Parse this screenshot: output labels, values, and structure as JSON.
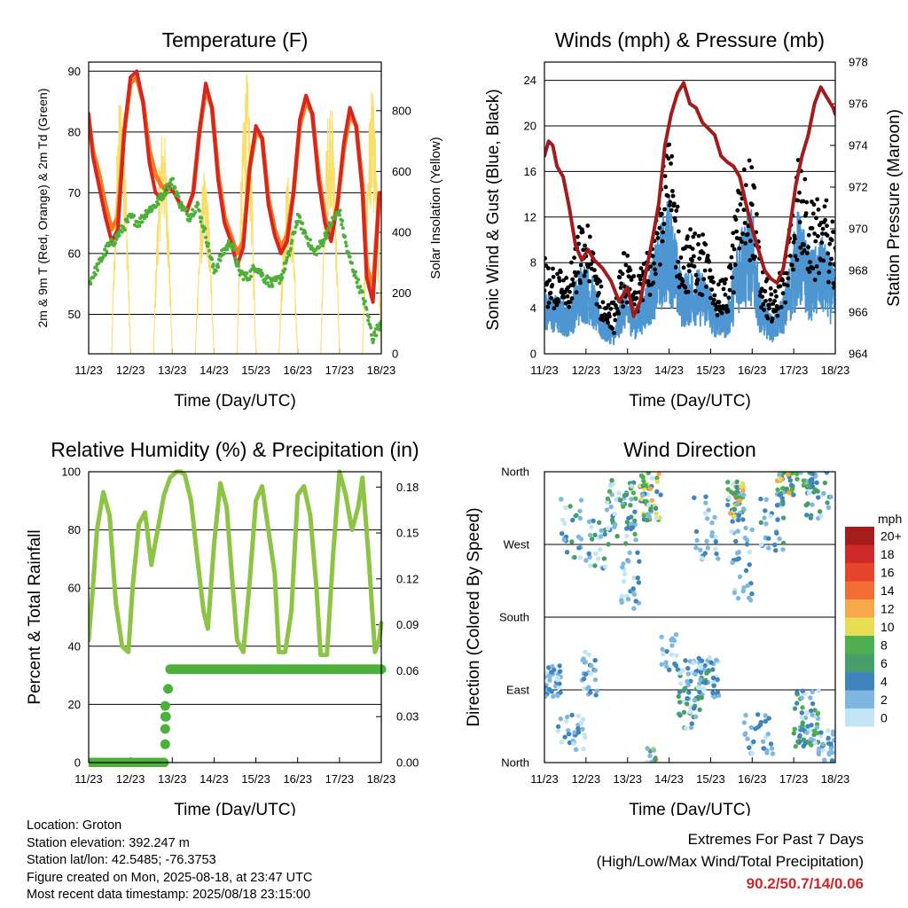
{
  "chart_data": [
    {
      "id": "temperature",
      "type": "line",
      "title": "Temperature (F)",
      "xlabel": "Time (Day/UTC)",
      "ylabel": "2m & 9m T (Red, Orange) & 2m Td (Green)",
      "y2label": "Solar Insolation (Yellow)",
      "x_ticks": [
        "11/23",
        "12/23",
        "13/23",
        "14/23",
        "15/23",
        "16/23",
        "17/23",
        "18/23"
      ],
      "xlim": [
        0,
        7
      ],
      "ylim": [
        43.5,
        91.5
      ],
      "y_ticks": [
        50,
        60,
        70,
        80,
        90
      ],
      "y2lim": [
        0,
        960
      ],
      "y2_ticks": [
        0,
        200,
        400,
        600,
        800
      ],
      "colors": {
        "t2m": "#d7261e",
        "t9m": "#f47a20",
        "td": "#4db03a",
        "solar": "#f7df6a"
      },
      "series": [
        {
          "key": "t2m",
          "x": [
            0,
            0.1,
            0.25,
            0.4,
            0.55,
            0.7,
            0.85,
            1.0,
            1.15,
            1.3,
            1.45,
            1.6,
            1.75,
            1.9,
            2.05,
            2.2,
            2.35,
            2.5,
            2.65,
            2.8,
            2.95,
            3.1,
            3.25,
            3.4,
            3.55,
            3.7,
            3.85,
            4.0,
            4.15,
            4.3,
            4.45,
            4.6,
            4.75,
            4.9,
            5.05,
            5.2,
            5.35,
            5.5,
            5.65,
            5.8,
            5.95,
            6.1,
            6.25,
            6.4,
            6.55,
            6.65,
            6.8,
            6.95,
            7.0
          ],
          "y": [
            83,
            76,
            71,
            66,
            62,
            64,
            80,
            89,
            90,
            85,
            75,
            70,
            69,
            71,
            70,
            68,
            67,
            70,
            80,
            88,
            84,
            72,
            65,
            62,
            58,
            61,
            74,
            81,
            79,
            68,
            63,
            60,
            62,
            70,
            82,
            86,
            83,
            72,
            65,
            62,
            68,
            78,
            84,
            81,
            70,
            56,
            52,
            70,
            70
          ]
        },
        {
          "key": "t9m",
          "x": [
            0,
            0.1,
            0.25,
            0.4,
            0.55,
            0.7,
            0.85,
            1.0,
            1.15,
            1.3,
            1.45,
            1.6,
            1.75,
            1.9,
            2.05,
            2.2,
            2.35,
            2.5,
            2.65,
            2.8,
            2.95,
            3.1,
            3.25,
            3.4,
            3.55,
            3.7,
            3.85,
            4.0,
            4.15,
            4.3,
            4.45,
            4.6,
            4.75,
            4.9,
            5.05,
            5.2,
            5.35,
            5.5,
            5.65,
            5.8,
            5.95,
            6.1,
            6.25,
            6.4,
            6.55,
            6.65,
            6.8,
            6.95,
            7.0
          ],
          "y": [
            82,
            77,
            73,
            68,
            64,
            66,
            80,
            88,
            89,
            85,
            77,
            73,
            71,
            71,
            70,
            68,
            67,
            70,
            80,
            87,
            84,
            73,
            66,
            63,
            60,
            62,
            74,
            80,
            79,
            69,
            64,
            61,
            63,
            70,
            81,
            85,
            83,
            73,
            66,
            63,
            68,
            77,
            83,
            81,
            71,
            58,
            54,
            69,
            69
          ]
        },
        {
          "key": "td",
          "x": [
            0,
            0.15,
            0.3,
            0.45,
            0.6,
            0.8,
            1.0,
            1.2,
            1.4,
            1.6,
            1.8,
            2.0,
            2.2,
            2.4,
            2.6,
            2.8,
            3.0,
            3.2,
            3.4,
            3.6,
            3.8,
            4.0,
            4.2,
            4.4,
            4.6,
            4.8,
            5.0,
            5.2,
            5.4,
            5.6,
            5.8,
            6.0,
            6.2,
            6.4,
            6.6,
            6.8,
            7.0
          ],
          "y": [
            55,
            57,
            59,
            61,
            62,
            64,
            66,
            65,
            67,
            68,
            70,
            72,
            68,
            66,
            68,
            63,
            57,
            60,
            62,
            57,
            56,
            58,
            56,
            55,
            56,
            60,
            66,
            63,
            60,
            62,
            65,
            67,
            60,
            56,
            52,
            46,
            49
          ]
        },
        {
          "key": "solar",
          "x": [],
          "y": []
        }
      ]
    },
    {
      "id": "winds",
      "type": "scatter",
      "title": "Winds (mph) & Pressure (mb)",
      "xlabel": "Time (Day/UTC)",
      "ylabel": "Sonic Wind & Gust (Blue, Black)",
      "y2label": "Station Pressure (Maroon)",
      "x_ticks": [
        "11/23",
        "12/23",
        "13/23",
        "14/23",
        "15/23",
        "16/23",
        "17/23",
        "18/23"
      ],
      "xlim": [
        0,
        7
      ],
      "ylim": [
        0,
        25.6
      ],
      "y_ticks": [
        0,
        4,
        8,
        12,
        16,
        20,
        24
      ],
      "y2lim": [
        964,
        978
      ],
      "y2_ticks": [
        964,
        966,
        968,
        970,
        972,
        974,
        976,
        978
      ],
      "colors": {
        "wind": "#4e96d1",
        "gust": "#000000",
        "pressure": "#a11d1d"
      },
      "series": [
        {
          "key": "pressure",
          "x": [
            0,
            0.1,
            0.2,
            0.3,
            0.45,
            0.6,
            0.75,
            0.9,
            1.05,
            1.2,
            1.4,
            1.6,
            1.8,
            2.0,
            2.15,
            2.3,
            2.45,
            2.6,
            2.75,
            2.9,
            3.05,
            3.2,
            3.35,
            3.5,
            3.65,
            3.8,
            3.95,
            4.1,
            4.25,
            4.4,
            4.55,
            4.7,
            4.85,
            5.0,
            5.15,
            5.3,
            5.45,
            5.6,
            5.75,
            5.9,
            6.05,
            6.2,
            6.35,
            6.5,
            6.65,
            6.8,
            6.95,
            7.0
          ],
          "y": [
            973.5,
            974.2,
            974,
            973,
            972.5,
            971,
            969.2,
            968.5,
            969,
            968.5,
            968.1,
            967.5,
            966.5,
            967.2,
            965.8,
            966.5,
            968,
            969.5,
            971.2,
            974,
            975.5,
            976.5,
            977,
            976,
            975.8,
            975.1,
            974.8,
            974.5,
            973.5,
            973.2,
            973,
            972.5,
            971.2,
            970,
            969,
            968,
            967.6,
            967.4,
            968.1,
            970,
            972.1,
            973.5,
            974.5,
            976,
            976.8,
            976.3,
            975.8,
            975.5
          ]
        },
        {
          "key": "wind",
          "x": [],
          "y": []
        },
        {
          "key": "gust",
          "x": [],
          "y": []
        }
      ]
    },
    {
      "id": "rh",
      "type": "line",
      "title": "Relative Humidity (%) & Precipitation (in)",
      "xlabel": "Time (Day/UTC)",
      "ylabel": "Percent & Total Rainfall",
      "x_ticks": [
        "11/23",
        "12/23",
        "13/23",
        "14/23",
        "15/23",
        "16/23",
        "17/23",
        "18/23"
      ],
      "xlim": [
        0,
        7
      ],
      "ylim": [
        0,
        100
      ],
      "y_ticks": [
        0,
        20,
        40,
        60,
        80,
        100
      ],
      "y2lim": [
        0,
        0.19
      ],
      "y2_ticks": [
        "0.00",
        "0.03",
        "0.06",
        "0.09",
        "0.12",
        "0.15",
        "0.18"
      ],
      "colors": {
        "rh": "#8ec446",
        "precip": "#4db03a"
      },
      "series": [
        {
          "key": "rh",
          "x": [
            0,
            0.1,
            0.2,
            0.35,
            0.5,
            0.65,
            0.8,
            0.95,
            1.05,
            1.2,
            1.35,
            1.5,
            1.65,
            1.8,
            1.95,
            2.1,
            2.2,
            2.3,
            2.45,
            2.6,
            2.75,
            2.85,
            3.0,
            3.15,
            3.3,
            3.45,
            3.55,
            3.7,
            3.85,
            4.0,
            4.15,
            4.3,
            4.45,
            4.55,
            4.7,
            4.85,
            5.0,
            5.15,
            5.3,
            5.45,
            5.55,
            5.7,
            5.85,
            6.0,
            6.15,
            6.3,
            6.45,
            6.55,
            6.7,
            6.85,
            6.95,
            7.0
          ],
          "y": [
            42,
            60,
            80,
            93,
            85,
            55,
            40,
            38,
            60,
            82,
            86,
            68,
            80,
            92,
            98,
            100,
            100,
            99,
            90,
            70,
            52,
            46,
            75,
            96,
            88,
            60,
            42,
            38,
            62,
            90,
            95,
            80,
            65,
            38,
            38,
            52,
            92,
            95,
            85,
            60,
            37,
            37,
            72,
            100,
            92,
            80,
            88,
            98,
            70,
            38,
            42,
            48
          ]
        },
        {
          "key": "precip",
          "x": [
            0,
            1.8,
            1.82,
            1.85,
            1.88,
            1.95,
            7.0
          ],
          "y": [
            0,
            0,
            0.01,
            0.03,
            0.043,
            0.061,
            0.061
          ]
        }
      ]
    },
    {
      "id": "direction",
      "type": "scatter",
      "title": "Wind Direction",
      "xlabel": "Time (Day/UTC)",
      "ylabel": "Direction (Colored By Speed)",
      "x_ticks": [
        "11/23",
        "12/23",
        "13/23",
        "14/23",
        "15/23",
        "16/23",
        "17/23",
        "18/23"
      ],
      "xlim": [
        0,
        7
      ],
      "y_ticks": [
        "North",
        "East",
        "South",
        "West",
        "North"
      ],
      "legend": {
        "title": "mph",
        "labels": [
          "20+",
          "18",
          "16",
          "14",
          "12",
          "10",
          "8",
          "6",
          "4",
          "2",
          "0"
        ],
        "colors": [
          "#a51c1c",
          "#cf2a2a",
          "#e6452b",
          "#f26c35",
          "#f7a84a",
          "#e8de55",
          "#4daf50",
          "#469e68",
          "#3f85bd",
          "#7eb8e2",
          "#c2e4f5"
        ]
      },
      "series": []
    }
  ],
  "meta": {
    "location": "Location: Groton",
    "elevation": "Station elevation: 392.247 m",
    "latlon": "Station lat/lon: 42.5485; -76.3753",
    "created": "Figure created on Mon, 2025-08-18, at 23:47 UTC",
    "recent": "Most recent data timestamp: 2025/08/18 23:15:00"
  },
  "extremes": {
    "line1": "Extremes For Past 7 Days",
    "line2": "(High/Low/Max Wind/Total Precipitation)",
    "values": "90.2/50.7/14/0.06"
  }
}
